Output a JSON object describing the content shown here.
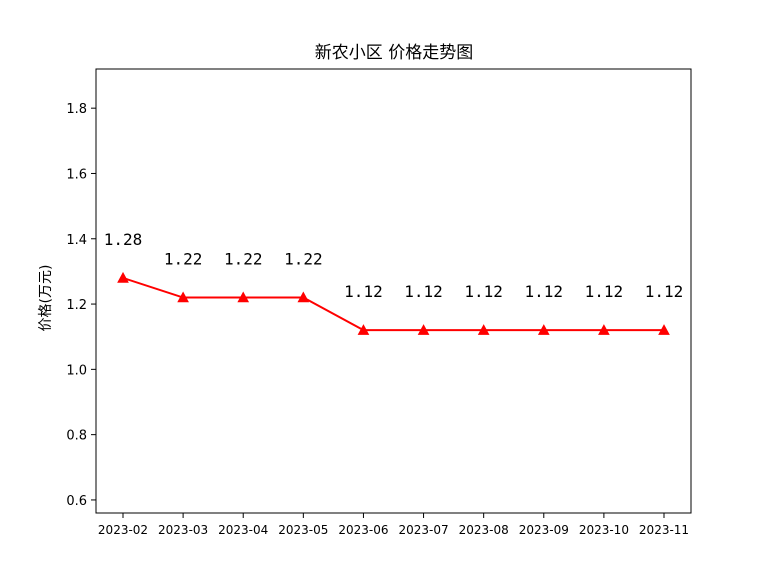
{
  "chart_data": {
    "type": "line",
    "title": "新农小区 价格走势图",
    "xlabel": "",
    "ylabel": "价格(万元)",
    "categories": [
      "2023-02",
      "2023-03",
      "2023-04",
      "2023-05",
      "2023-06",
      "2023-07",
      "2023-08",
      "2023-09",
      "2023-10",
      "2023-11"
    ],
    "series": [
      {
        "values": [
          1.28,
          1.22,
          1.22,
          1.22,
          1.12,
          1.12,
          1.12,
          1.12,
          1.12,
          1.12
        ],
        "data_labels": [
          "1.28",
          "1.22",
          "1.22",
          "1.22",
          "1.12",
          "1.12",
          "1.12",
          "1.12",
          "1.12",
          "1.12"
        ],
        "color": "#ff0000",
        "marker": "triangle-up"
      }
    ],
    "ylim": [
      0.56,
      1.92
    ],
    "yticks": [
      0.6,
      0.8,
      1.0,
      1.2,
      1.4,
      1.6,
      1.8
    ],
    "ytick_labels": [
      "0.6",
      "0.8",
      "1.0",
      "1.2",
      "1.4",
      "1.6",
      "1.8"
    ],
    "grid": false,
    "legend": "none"
  }
}
